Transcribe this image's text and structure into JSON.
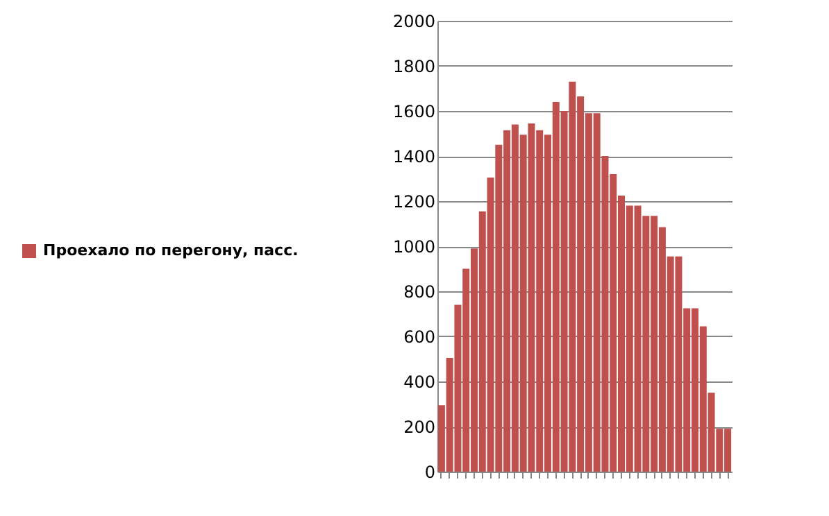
{
  "chart_data": {
    "type": "bar",
    "categories": [
      null,
      null,
      null,
      null,
      null,
      null,
      null,
      null,
      null,
      null,
      null,
      null,
      null,
      null,
      null,
      null,
      null,
      null,
      null,
      null,
      null,
      null,
      null,
      null,
      null,
      null,
      null,
      null,
      null,
      null,
      null,
      null,
      null,
      null,
      null,
      null
    ],
    "series": [
      {
        "name": "Проехало по перегону, пасс.",
        "color": "#c0504d",
        "values": [
          295,
          505,
          740,
          900,
          990,
          1155,
          1305,
          1450,
          1515,
          1540,
          1495,
          1545,
          1515,
          1495,
          1640,
          1600,
          1730,
          1665,
          1590,
          1590,
          1400,
          1320,
          1225,
          1180,
          1180,
          1135,
          1135,
          1085,
          955,
          955,
          725,
          725,
          645,
          350,
          190,
          190
        ]
      }
    ],
    "ylim": [
      0,
      2000
    ],
    "yticks": [
      0,
      200,
      400,
      600,
      800,
      1000,
      1200,
      1400,
      1600,
      1800,
      2000
    ],
    "grid": "y",
    "legend": "left"
  }
}
